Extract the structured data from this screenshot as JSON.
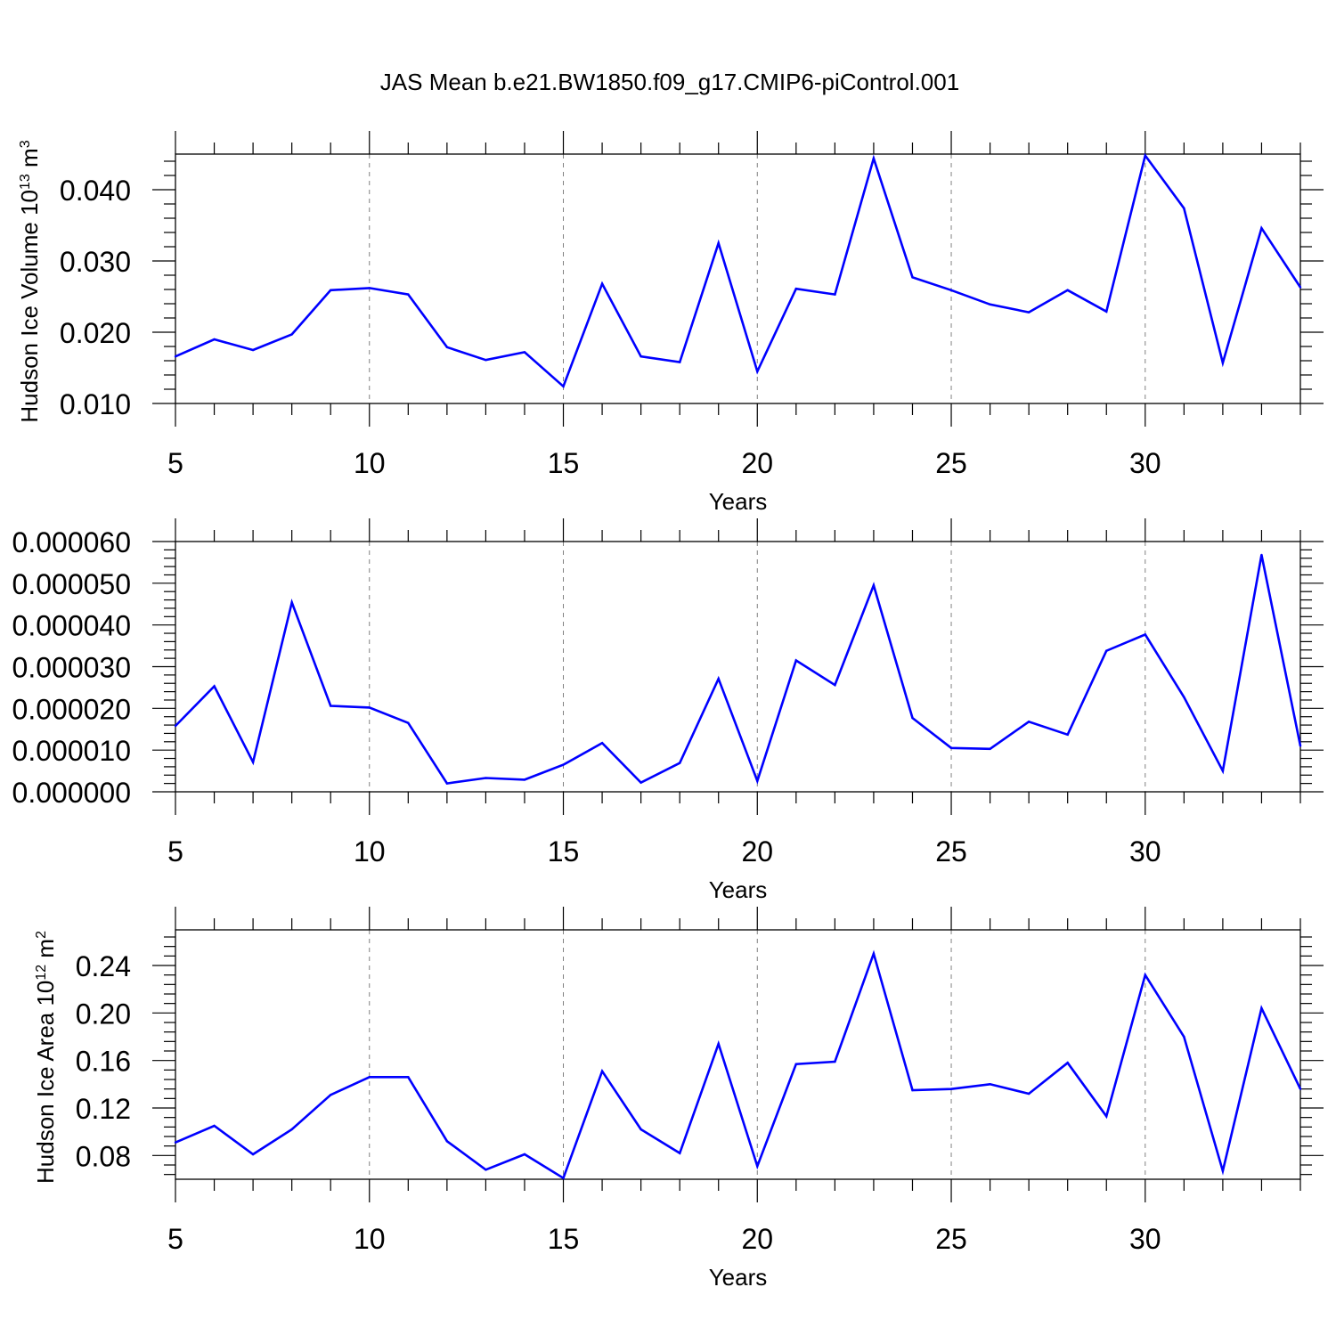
{
  "title": "JAS Mean b.e21.BW1850.f09_g17.CMIP6-piControl.001",
  "colors": {
    "line": "#0000ff",
    "axis": "#000000",
    "grid": "#808080",
    "background": "#ffffff"
  },
  "chart_data": [
    {
      "type": "line",
      "title": "JAS Mean b.e21.BW1850.f09_g17.CMIP6-piControl.001",
      "ylabel": "Hudson Ice Volume 10",
      "ylabel_sup": "13",
      "ylabel_unit": " m",
      "ylabel_unit_sup": "3",
      "xlabel": "Years",
      "xlim": [
        5,
        34
      ],
      "ylim": [
        0.01,
        0.045
      ],
      "xticks": [
        5,
        10,
        15,
        20,
        25,
        30
      ],
      "xtick_labels": [
        "5",
        "10",
        "15",
        "20",
        "25",
        "30"
      ],
      "yticks": [
        0.01,
        0.02,
        0.03,
        0.04
      ],
      "ytick_labels": [
        "0.010",
        "0.020",
        "0.030",
        "0.040"
      ],
      "grid": "vertical dashed at major x ticks",
      "x": [
        5,
        6,
        7,
        8,
        9,
        10,
        11,
        12,
        13,
        14,
        15,
        16,
        17,
        18,
        19,
        20,
        21,
        22,
        23,
        24,
        25,
        26,
        27,
        28,
        29,
        30,
        31,
        32,
        33,
        34
      ],
      "series": [
        {
          "values": [
            0.0166,
            0.019,
            0.0175,
            0.0197,
            0.0259,
            0.0262,
            0.0253,
            0.0179,
            0.0161,
            0.0172,
            0.0124,
            0.0268,
            0.0166,
            0.0158,
            0.0325,
            0.0145,
            0.0261,
            0.0253,
            0.0444,
            0.0277,
            0.0259,
            0.0239,
            0.0228,
            0.0259,
            0.0229,
            0.0448,
            0.0374,
            0.0157,
            0.0346,
            0.0263
          ]
        }
      ]
    },
    {
      "type": "line",
      "ylabel": "",
      "xlabel": "Years",
      "xlim": [
        5,
        34
      ],
      "ylim": [
        0.0,
        6e-05
      ],
      "xticks": [
        5,
        10,
        15,
        20,
        25,
        30
      ],
      "xtick_labels": [
        "5",
        "10",
        "15",
        "20",
        "25",
        "30"
      ],
      "yticks": [
        0.0,
        1e-05,
        2e-05,
        3e-05,
        4e-05,
        5e-05,
        6e-05
      ],
      "ytick_labels": [
        "0.000000",
        "0.000010",
        "0.000020",
        "0.000030",
        "0.000040",
        "0.000050",
        "0.000060"
      ],
      "grid": "vertical dashed at major x ticks",
      "x": [
        5,
        6,
        7,
        8,
        9,
        10,
        11,
        12,
        13,
        14,
        15,
        16,
        17,
        18,
        19,
        20,
        21,
        22,
        23,
        24,
        25,
        26,
        27,
        28,
        29,
        30,
        31,
        32,
        33,
        34
      ],
      "series": [
        {
          "values": [
            1.58e-05,
            2.53e-05,
            7.1e-06,
            4.54e-05,
            2.06e-05,
            2.02e-05,
            1.65e-05,
            2e-06,
            3.3e-06,
            2.9e-06,
            6.5e-06,
            1.17e-05,
            2.2e-06,
            6.9e-06,
            2.71e-05,
            2.6e-06,
            3.15e-05,
            2.56e-05,
            4.95e-05,
            1.77e-05,
            1.05e-05,
            1.03e-05,
            1.68e-05,
            1.37e-05,
            3.38e-05,
            3.77e-05,
            2.27e-05,
            5e-06,
            5.68e-05,
            1.1e-05
          ]
        }
      ]
    },
    {
      "type": "line",
      "ylabel": "Hudson Ice Area 10",
      "ylabel_sup": "12",
      "ylabel_unit": " m",
      "ylabel_unit_sup": "2",
      "xlabel": "Years",
      "xlim": [
        5,
        34
      ],
      "ylim": [
        0.06,
        0.27
      ],
      "xticks": [
        5,
        10,
        15,
        20,
        25,
        30
      ],
      "xtick_labels": [
        "5",
        "10",
        "15",
        "20",
        "25",
        "30"
      ],
      "yticks": [
        0.08,
        0.12,
        0.16,
        0.2,
        0.24
      ],
      "ytick_labels": [
        "0.08",
        "0.12",
        "0.16",
        "0.20",
        "0.24"
      ],
      "grid": "vertical dashed at major x ticks",
      "x": [
        5,
        6,
        7,
        8,
        9,
        10,
        11,
        12,
        13,
        14,
        15,
        16,
        17,
        18,
        19,
        20,
        21,
        22,
        23,
        24,
        25,
        26,
        27,
        28,
        29,
        30,
        31,
        32,
        33,
        34
      ],
      "series": [
        {
          "values": [
            0.091,
            0.105,
            0.081,
            0.102,
            0.131,
            0.146,
            0.146,
            0.092,
            0.068,
            0.081,
            0.061,
            0.151,
            0.102,
            0.082,
            0.174,
            0.071,
            0.157,
            0.159,
            0.25,
            0.135,
            0.136,
            0.14,
            0.132,
            0.158,
            0.113,
            0.232,
            0.18,
            0.067,
            0.204,
            0.136
          ]
        }
      ]
    }
  ]
}
